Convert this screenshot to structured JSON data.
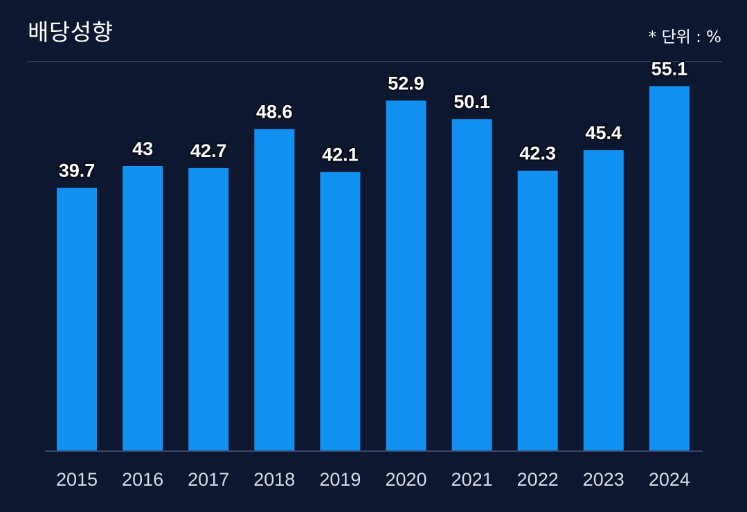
{
  "header": {
    "title": "배당성향",
    "unit": "* 단위 : %"
  },
  "colors": {
    "background": "#0e1730",
    "bar": "#1192f3",
    "divider": "#2f3a55"
  },
  "chart_data": {
    "type": "bar",
    "title": "배당성향",
    "unit": "%",
    "categories": [
      "2015",
      "2016",
      "2017",
      "2018",
      "2019",
      "2020",
      "2021",
      "2022",
      "2023",
      "2024"
    ],
    "values": [
      39.7,
      43,
      42.7,
      48.6,
      42.1,
      52.9,
      50.1,
      42.3,
      45.4,
      55.1
    ],
    "data_labels": [
      "39.7",
      "43",
      "42.7",
      "48.6",
      "42.1",
      "52.9",
      "50.1",
      "42.3",
      "45.4",
      "55.1"
    ],
    "ylim": [
      0,
      61
    ],
    "grid": false,
    "legend": "none"
  }
}
